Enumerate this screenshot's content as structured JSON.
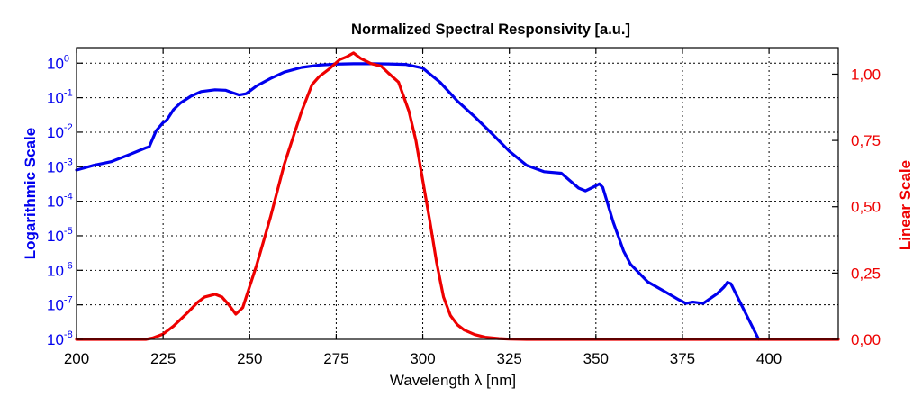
{
  "chart_data": {
    "type": "line",
    "title": "Normalized Spectral Responsivity [a.u.]",
    "xlabel": "Wavelength λ [nm]",
    "ylabel_left": "Logarithmic Scale",
    "ylabel_right": "Linear Scale",
    "xlim": [
      200,
      420
    ],
    "x_ticks": [
      200,
      225,
      250,
      275,
      300,
      325,
      350,
      375,
      400
    ],
    "ylim_left_log10": [
      -8,
      0.45
    ],
    "y_ticks_left_exponents": [
      0,
      -1,
      -2,
      -3,
      -4,
      -5,
      -6,
      -7,
      -8
    ],
    "y_ticks_left_labels": [
      "10",
      "10",
      "10",
      "10",
      "10",
      "10",
      "10",
      "10",
      "10"
    ],
    "y_ticks_left_superscripts": [
      "0",
      "-1",
      "-2",
      "-3",
      "-4",
      "-5",
      "-6",
      "-7",
      "-8"
    ],
    "ylim_right": [
      0,
      1.1
    ],
    "y_ticks_right": [
      0,
      0.25,
      0.5,
      0.75,
      1.0
    ],
    "y_ticks_right_labels": [
      "0,00",
      "0,25",
      "0,50",
      "0,75",
      "1,00"
    ],
    "grid": true,
    "colors": {
      "log_series": "#0000ee",
      "linear_series": "#ee0000",
      "left_axis_text": "#0000ee",
      "right_axis_text": "#ee0000"
    },
    "series": [
      {
        "axis": "left-log",
        "x": [
          200,
          205,
          210,
          215,
          220,
          221,
          223,
          225,
          226,
          228,
          230,
          233,
          236,
          240,
          243,
          245,
          247,
          249,
          252,
          256,
          260,
          265,
          270,
          275,
          280,
          285,
          290,
          295,
          300,
          305,
          310,
          315,
          320,
          325,
          330,
          335,
          340,
          345,
          347,
          350,
          351,
          352,
          355,
          358,
          360,
          365,
          370,
          374,
          376,
          378,
          381,
          385,
          387,
          388,
          389,
          391,
          395,
          397
        ],
        "y": [
          0.0008,
          0.0011,
          0.0014,
          0.0022,
          0.0035,
          0.0038,
          0.011,
          0.019,
          0.022,
          0.045,
          0.07,
          0.11,
          0.15,
          0.17,
          0.165,
          0.14,
          0.12,
          0.13,
          0.22,
          0.36,
          0.55,
          0.75,
          0.88,
          0.94,
          0.96,
          0.96,
          0.95,
          0.92,
          0.72,
          0.28,
          0.08,
          0.028,
          0.009,
          0.0028,
          0.0011,
          0.00072,
          0.00065,
          0.00024,
          0.0002,
          0.00028,
          0.00032,
          0.00025,
          2.5e-05,
          3.6e-06,
          1.5e-06,
          4.6e-07,
          2.4e-07,
          1.4e-07,
          1.1e-07,
          1.2e-07,
          1.1e-07,
          2.1e-07,
          3.3e-07,
          4.5e-07,
          4.1e-07,
          1.6e-07,
          2.5e-08,
          1e-08
        ]
      },
      {
        "axis": "right-linear",
        "x": [
          200,
          210,
          220,
          222,
          225,
          228,
          232,
          235,
          237,
          240,
          242,
          244,
          246,
          248,
          250,
          252,
          254,
          256,
          258,
          260,
          262,
          265,
          268,
          270,
          273,
          276,
          278,
          280,
          282,
          285,
          288,
          290,
          293,
          296,
          298,
          300,
          302,
          304,
          306,
          308,
          310,
          312,
          315,
          318,
          322,
          325,
          330,
          340,
          350,
          400,
          420
        ],
        "y": [
          0.0,
          0.0,
          0.0,
          0.005,
          0.02,
          0.05,
          0.1,
          0.14,
          0.16,
          0.17,
          0.16,
          0.13,
          0.095,
          0.12,
          0.2,
          0.28,
          0.37,
          0.46,
          0.56,
          0.66,
          0.74,
          0.86,
          0.96,
          0.99,
          1.02,
          1.055,
          1.065,
          1.08,
          1.06,
          1.04,
          1.03,
          1.005,
          0.97,
          0.86,
          0.75,
          0.6,
          0.45,
          0.29,
          0.16,
          0.09,
          0.055,
          0.035,
          0.018,
          0.008,
          0.003,
          0.001,
          0.0,
          0.0,
          0.0,
          0.0,
          0.0
        ]
      }
    ]
  }
}
